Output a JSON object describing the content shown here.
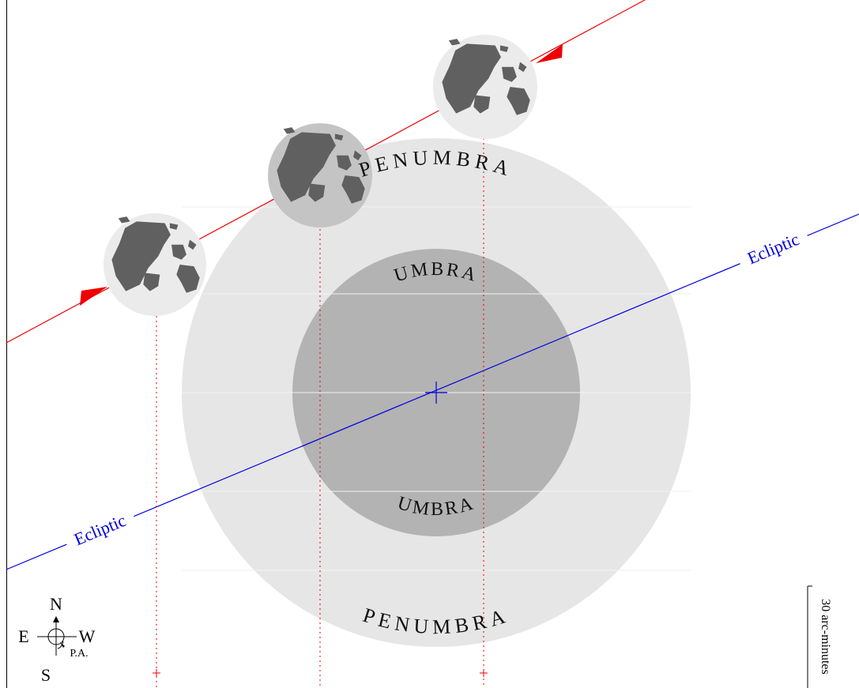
{
  "labels": {
    "penumbra_top": "PENUMBRA",
    "penumbra_bottom": "PENUMBRA",
    "umbra_top": "UMBRA",
    "umbra_bottom": "UMBRA",
    "ecliptic_left": "Ecliptic",
    "ecliptic_right": "Ecliptic",
    "scale": "30 arc-minutes"
  },
  "compass": {
    "north": "N",
    "south": "S",
    "east": "E",
    "west": "W",
    "position_angle": "P.A."
  },
  "colors": {
    "penumbra": "#e6e6e6",
    "umbra": "#b3b3b3",
    "ecliptic": "#0000dd",
    "moon_path": "#ee0000",
    "moon_face": "#ebebeb",
    "moon_face_eclipsed": "#c4c4c4",
    "maria": "#606060"
  },
  "moons": [
    {
      "stage": "first contact",
      "shaded": false
    },
    {
      "stage": "greatest eclipse",
      "shaded": true
    },
    {
      "stage": "last contact",
      "shaded": false
    }
  ]
}
